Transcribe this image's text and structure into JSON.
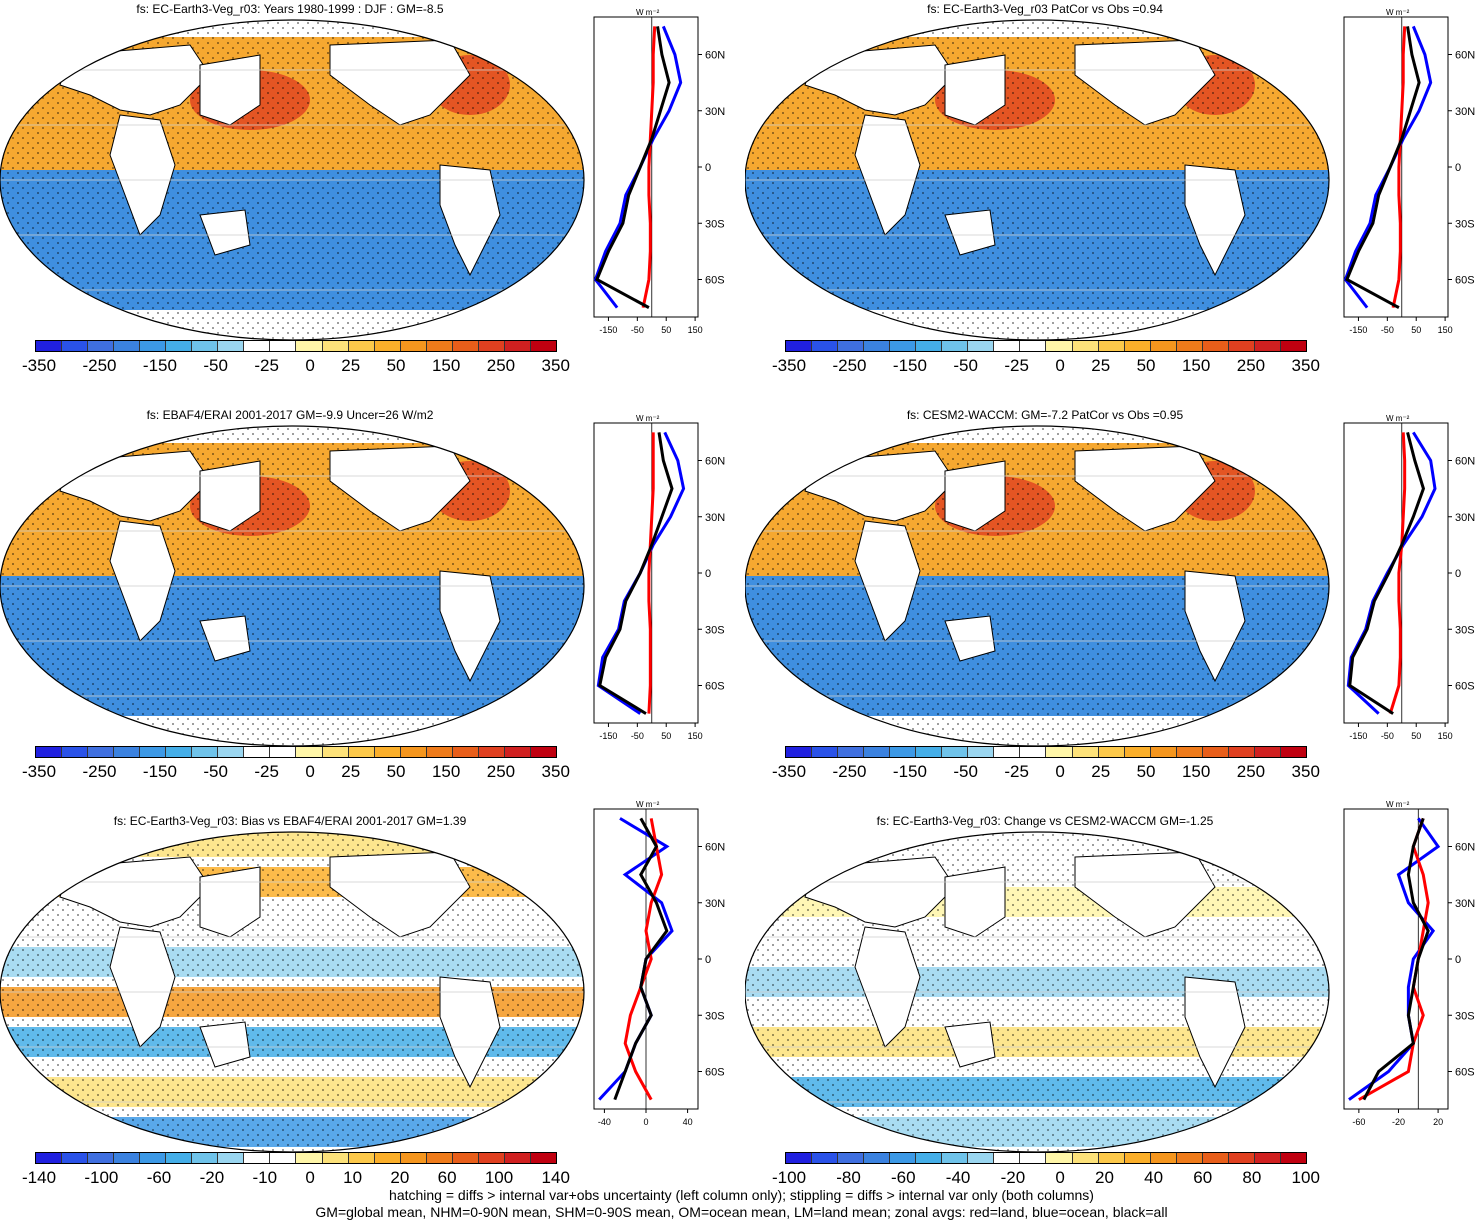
{
  "panels": [
    {
      "id": "p1",
      "title": "fs: EC-Earth3-Veg_r03: Years 1980-1999 : DJF : GM=-8.5",
      "cbar_labels": [
        "-350",
        "-250",
        "-150",
        "-50",
        "-25",
        "0",
        "25",
        "50",
        "150",
        "250",
        "350"
      ],
      "zonal_units": "W m⁻²",
      "zonal_xticks": [
        "-150",
        "-50",
        "50",
        "150"
      ],
      "type": "mean"
    },
    {
      "id": "p2",
      "title": "fs: EC-Earth3-Veg_r03 PatCor vs Obs =0.94",
      "cbar_labels": [
        "-350",
        "-250",
        "-150",
        "-50",
        "-25",
        "0",
        "25",
        "50",
        "150",
        "250",
        "350"
      ],
      "zonal_units": "W m⁻²",
      "zonal_xticks": [
        "-150",
        "-50",
        "50",
        "150"
      ],
      "type": "mean"
    },
    {
      "id": "p3",
      "title": "fs: EBAF4/ERAI 2001-2017 GM=-9.9 Uncer=26 W/m2",
      "cbar_labels": [
        "-350",
        "-250",
        "-150",
        "-50",
        "-25",
        "0",
        "25",
        "50",
        "150",
        "250",
        "350"
      ],
      "zonal_units": "W m⁻²",
      "zonal_xticks": [
        "-150",
        "-50",
        "50",
        "150"
      ],
      "type": "mean"
    },
    {
      "id": "p4",
      "title": "fs: CESM2-WACCM: GM=-7.2 PatCor vs Obs =0.95",
      "cbar_labels": [
        "-350",
        "-250",
        "-150",
        "-50",
        "-25",
        "0",
        "25",
        "50",
        "150",
        "250",
        "350"
      ],
      "zonal_units": "W m⁻²",
      "zonal_xticks": [
        "-150",
        "-50",
        "50",
        "150"
      ],
      "type": "mean"
    },
    {
      "id": "p5",
      "title": "fs: EC-Earth3-Veg_r03: Bias vs EBAF4/ERAI 2001-2017 GM=1.39",
      "cbar_labels": [
        "-140",
        "-100",
        "-60",
        "-20",
        "-10",
        "0",
        "10",
        "20",
        "60",
        "100",
        "140"
      ],
      "zonal_units": "W m⁻²",
      "zonal_xticks": [
        "-40",
        "0",
        "40"
      ],
      "type": "bias"
    },
    {
      "id": "p6",
      "title": "fs: EC-Earth3-Veg_r03: Change vs CESM2-WACCM GM=-1.25",
      "cbar_labels": [
        "-100",
        "-80",
        "-60",
        "-40",
        "-20",
        "0",
        "20",
        "40",
        "60",
        "80",
        "100"
      ],
      "zonal_units": "W m⁻²",
      "zonal_xticks": [
        "-60",
        "-20",
        "20"
      ],
      "type": "bias"
    }
  ],
  "lat_ticks": [
    "60N",
    "30N",
    "0",
    "30S",
    "60S"
  ],
  "colors": {
    "scale": [
      "#2020e0",
      "#2a52e8",
      "#3f6fe0",
      "#3b82e0",
      "#3c99e6",
      "#44aee8",
      "#6fc3ea",
      "#9ad6f0",
      "#ffffff",
      "#ffffff",
      "#fff6a8",
      "#fde27a",
      "#fdc94a",
      "#fbaf2a",
      "#f5961e",
      "#ef7b1a",
      "#e85e1a",
      "#e04020",
      "#d02020",
      "#c00010"
    ],
    "land": "#ffffff",
    "ocean_neg": "#3f8fe0",
    "ocean_pos": "#f6a830",
    "zonal_land": "#ff0000",
    "zonal_ocean": "#0000ff",
    "zonal_all": "#000000"
  },
  "chart_data": [
    {
      "type": "heatmap",
      "title": "fs: EC-Earth3-Veg_r03: Years 1980-1999 : DJF : GM=-8.5",
      "ylabel": "W m-2",
      "zonal": {
        "lat": [
          75,
          60,
          45,
          30,
          15,
          0,
          -15,
          -30,
          -45,
          -60,
          -75
        ],
        "all": [
          20,
          35,
          60,
          30,
          0,
          -40,
          -80,
          -100,
          -150,
          -190,
          -10
        ],
        "ocean": [
          40,
          80,
          100,
          60,
          5,
          -40,
          -90,
          -110,
          -160,
          -195,
          -120
        ],
        "land": [
          10,
          5,
          5,
          0,
          -5,
          -10,
          -10,
          -5,
          -5,
          -10,
          -30
        ]
      }
    },
    {
      "type": "heatmap",
      "title": "fs: EC-Earth3-Veg_r03 PatCor vs Obs =0.94",
      "ylabel": "W m-2",
      "zonal": {
        "lat": [
          75,
          60,
          45,
          30,
          15,
          0,
          -15,
          -30,
          -45,
          -60,
          -75
        ],
        "all": [
          20,
          35,
          60,
          30,
          0,
          -40,
          -80,
          -100,
          -150,
          -190,
          -10
        ],
        "ocean": [
          40,
          80,
          100,
          60,
          5,
          -40,
          -90,
          -110,
          -160,
          -195,
          -120
        ],
        "land": [
          10,
          5,
          5,
          0,
          -5,
          -10,
          -10,
          -5,
          -5,
          -10,
          -30
        ]
      }
    },
    {
      "type": "heatmap",
      "title": "fs: EBAF4/ERAI 2001-2017 GM=-9.9 Uncer=26 W/m2",
      "ylabel": "W m-2",
      "zonal": {
        "lat": [
          75,
          60,
          45,
          30,
          15,
          0,
          -15,
          -30,
          -45,
          -60,
          -75
        ],
        "all": [
          25,
          40,
          70,
          35,
          0,
          -40,
          -90,
          -110,
          -160,
          -180,
          -20
        ],
        "ocean": [
          45,
          90,
          110,
          65,
          5,
          -40,
          -95,
          -115,
          -170,
          -185,
          -40
        ],
        "land": [
          5,
          5,
          5,
          0,
          -5,
          -10,
          -10,
          -5,
          -5,
          -5,
          -10
        ]
      }
    },
    {
      "type": "heatmap",
      "title": "fs: CESM2-WACCM: GM=-7.2 PatCor vs Obs =0.95",
      "ylabel": "W m-2",
      "zonal": {
        "lat": [
          75,
          60,
          45,
          30,
          15,
          0,
          -15,
          -30,
          -45,
          -60,
          -75
        ],
        "all": [
          20,
          45,
          75,
          40,
          0,
          -45,
          -95,
          -120,
          -170,
          -180,
          -30
        ],
        "ocean": [
          40,
          100,
          115,
          70,
          5,
          -50,
          -100,
          -125,
          -175,
          -185,
          -80
        ],
        "land": [
          5,
          10,
          10,
          5,
          0,
          -10,
          -10,
          -5,
          -5,
          -10,
          -40
        ]
      }
    },
    {
      "type": "heatmap",
      "title": "fs: EC-Earth3-Veg_r03: Bias vs EBAF4/ERAI 2001-2017 GM=1.39",
      "ylabel": "W m-2",
      "zonal": {
        "lat": [
          75,
          60,
          45,
          30,
          15,
          0,
          -15,
          -30,
          -45,
          -60,
          -75
        ],
        "all": [
          -5,
          10,
          -5,
          10,
          20,
          0,
          -5,
          5,
          -10,
          -20,
          -30
        ],
        "ocean": [
          -25,
          20,
          -20,
          15,
          25,
          0,
          -5,
          5,
          -10,
          -20,
          -45
        ],
        "land": [
          5,
          10,
          15,
          5,
          0,
          5,
          -5,
          -15,
          -20,
          -10,
          5
        ]
      }
    },
    {
      "type": "heatmap",
      "title": "fs: EC-Earth3-Veg_r03: Change vs CESM2-WACCM GM=-1.25",
      "ylabel": "W m-2",
      "zonal": {
        "lat": [
          75,
          60,
          45,
          30,
          15,
          0,
          -15,
          -30,
          -45,
          -60,
          -75
        ],
        "all": [
          5,
          -5,
          -10,
          -5,
          10,
          0,
          -5,
          -10,
          -5,
          -40,
          -55
        ],
        "ocean": [
          0,
          20,
          -20,
          -10,
          15,
          -5,
          -10,
          -10,
          -5,
          -30,
          -70
        ],
        "land": [
          5,
          -5,
          5,
          10,
          5,
          0,
          -5,
          5,
          -5,
          -10,
          -60
        ]
      }
    }
  ],
  "footer": {
    "line1": "hatching = diffs > internal var+obs uncertainty (left column only); stippling = diffs > internal var only (both columns)",
    "line2": "GM=global mean, NHM=0-90N mean, SHM=0-90S mean, OM=ocean mean, LM=land mean; zonal avgs: red=land, blue=ocean, black=all"
  }
}
